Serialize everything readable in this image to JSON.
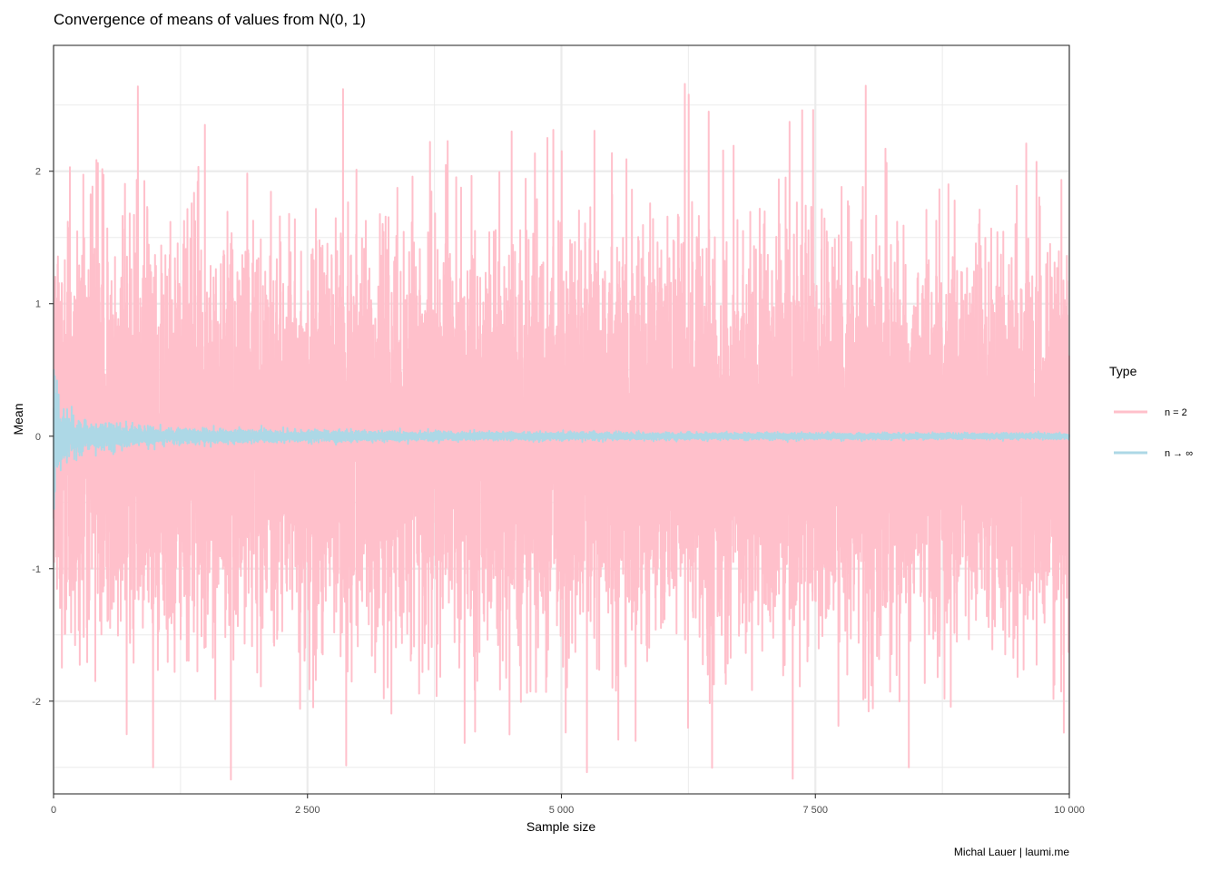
{
  "chart_data": {
    "type": "line",
    "title": "Convergence of means of values from N(0, 1)",
    "xlabel": "Sample size",
    "ylabel": "Mean",
    "xlim": [
      0,
      10000
    ],
    "ylim": [
      -2.7,
      2.95
    ],
    "x_ticks": [
      0,
      2500,
      5000,
      7500,
      10000
    ],
    "x_tick_labels": [
      "0",
      "2 500",
      "5 000",
      "7 500",
      "10 000"
    ],
    "y_ticks": [
      -2,
      -1,
      0,
      1,
      2
    ],
    "y_tick_labels": [
      "-2",
      "-1",
      "0",
      "1",
      "2"
    ],
    "grid": true,
    "legend": {
      "title": "Type",
      "position": "right"
    },
    "caption": "Michal Lauer | laumi.me",
    "series": [
      {
        "name": "n = 2",
        "color": "#ffc0cb",
        "description_values": "mean of 2 draws from N(0,1) at each sample index 1..10000",
        "summary": {
          "x_start": 1,
          "x_end": 10000,
          "approx_min": -2.5,
          "approx_max": 2.64,
          "mean": 0
        },
        "highlight_points": [
          {
            "x": 830,
            "y": 2.64
          },
          {
            "x": 2850,
            "y": 2.62
          },
          {
            "x": 8420,
            "y": 2.63
          },
          {
            "x": 8420,
            "y": -2.5
          },
          {
            "x": 980,
            "y": -2.5
          },
          {
            "x": 5730,
            "y": -2.3
          },
          {
            "x": 1490,
            "y": 2.35
          },
          {
            "x": 4510,
            "y": 2.3
          },
          {
            "x": 6450,
            "y": 2.45
          },
          {
            "x": 7370,
            "y": 2.46
          },
          {
            "x": 720,
            "y": -2.25
          },
          {
            "x": 4150,
            "y": -2.23
          }
        ]
      },
      {
        "name": "n → ∞",
        "color": "#add8e6",
        "description_values": "cumulative running mean of N(0,1) draws, converging to 0",
        "summary": {
          "x_start": 1,
          "x_end": 10000,
          "approx_min": -0.55,
          "approx_max": 0.5,
          "converges_to": 0
        }
      }
    ]
  }
}
